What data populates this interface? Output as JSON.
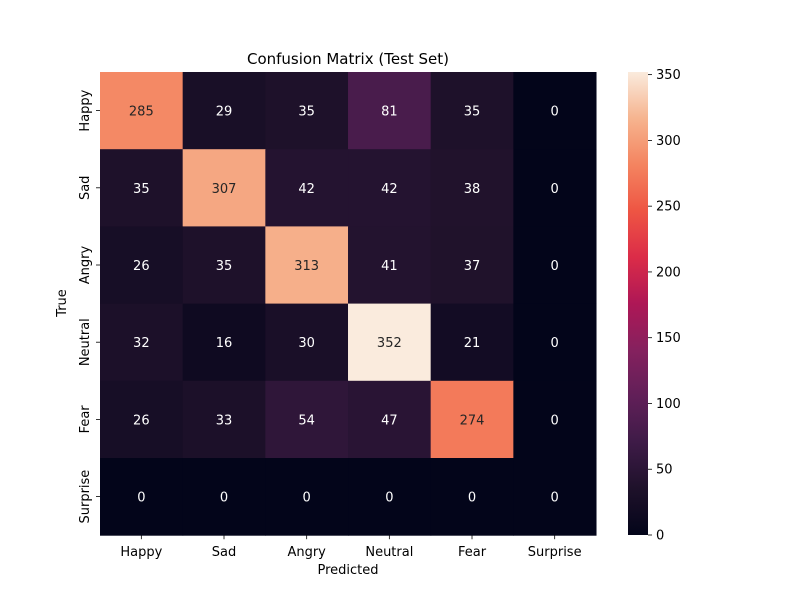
{
  "chart_data": {
    "type": "heatmap",
    "title": "Confusion Matrix (Test Set)",
    "xlabel": "Predicted",
    "ylabel": "True",
    "x_categories": [
      "Happy",
      "Sad",
      "Angry",
      "Neutral",
      "Fear",
      "Surprise"
    ],
    "y_categories": [
      "Happy",
      "Sad",
      "Angry",
      "Neutral",
      "Fear",
      "Surprise"
    ],
    "values": [
      [
        285,
        29,
        35,
        81,
        35,
        0
      ],
      [
        35,
        307,
        42,
        42,
        38,
        0
      ],
      [
        26,
        35,
        313,
        41,
        37,
        0
      ],
      [
        32,
        16,
        30,
        352,
        21,
        0
      ],
      [
        26,
        33,
        54,
        47,
        274,
        0
      ],
      [
        0,
        0,
        0,
        0,
        0,
        0
      ]
    ],
    "colorbar": {
      "range": [
        0,
        352
      ],
      "ticks": [
        0,
        50,
        100,
        150,
        200,
        250,
        300,
        350
      ],
      "colormap": "rocket"
    },
    "annotations": true,
    "grid": false
  }
}
